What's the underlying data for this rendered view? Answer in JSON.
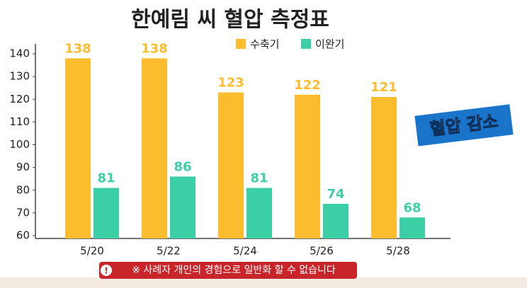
{
  "chart_data": {
    "type": "bar",
    "title": "한예림 씨 혈압 측정표",
    "categories": [
      "5/20",
      "5/22",
      "5/24",
      "5/26",
      "5/28"
    ],
    "series": [
      {
        "name": "수축기",
        "color": "#fbbd2e",
        "values": [
          138,
          138,
          123,
          122,
          121
        ]
      },
      {
        "name": "이완기",
        "color": "#3ccfa6",
        "values": [
          81,
          86,
          81,
          74,
          68
        ]
      }
    ],
    "ylim": [
      60,
      140
    ],
    "yticks": [
      60,
      70,
      80,
      90,
      100,
      110,
      120,
      130,
      140
    ],
    "annotation": "혈압 감소",
    "footnote": "※ 사례자 개인의 경험으로 일반화 할 수 없습니다"
  }
}
